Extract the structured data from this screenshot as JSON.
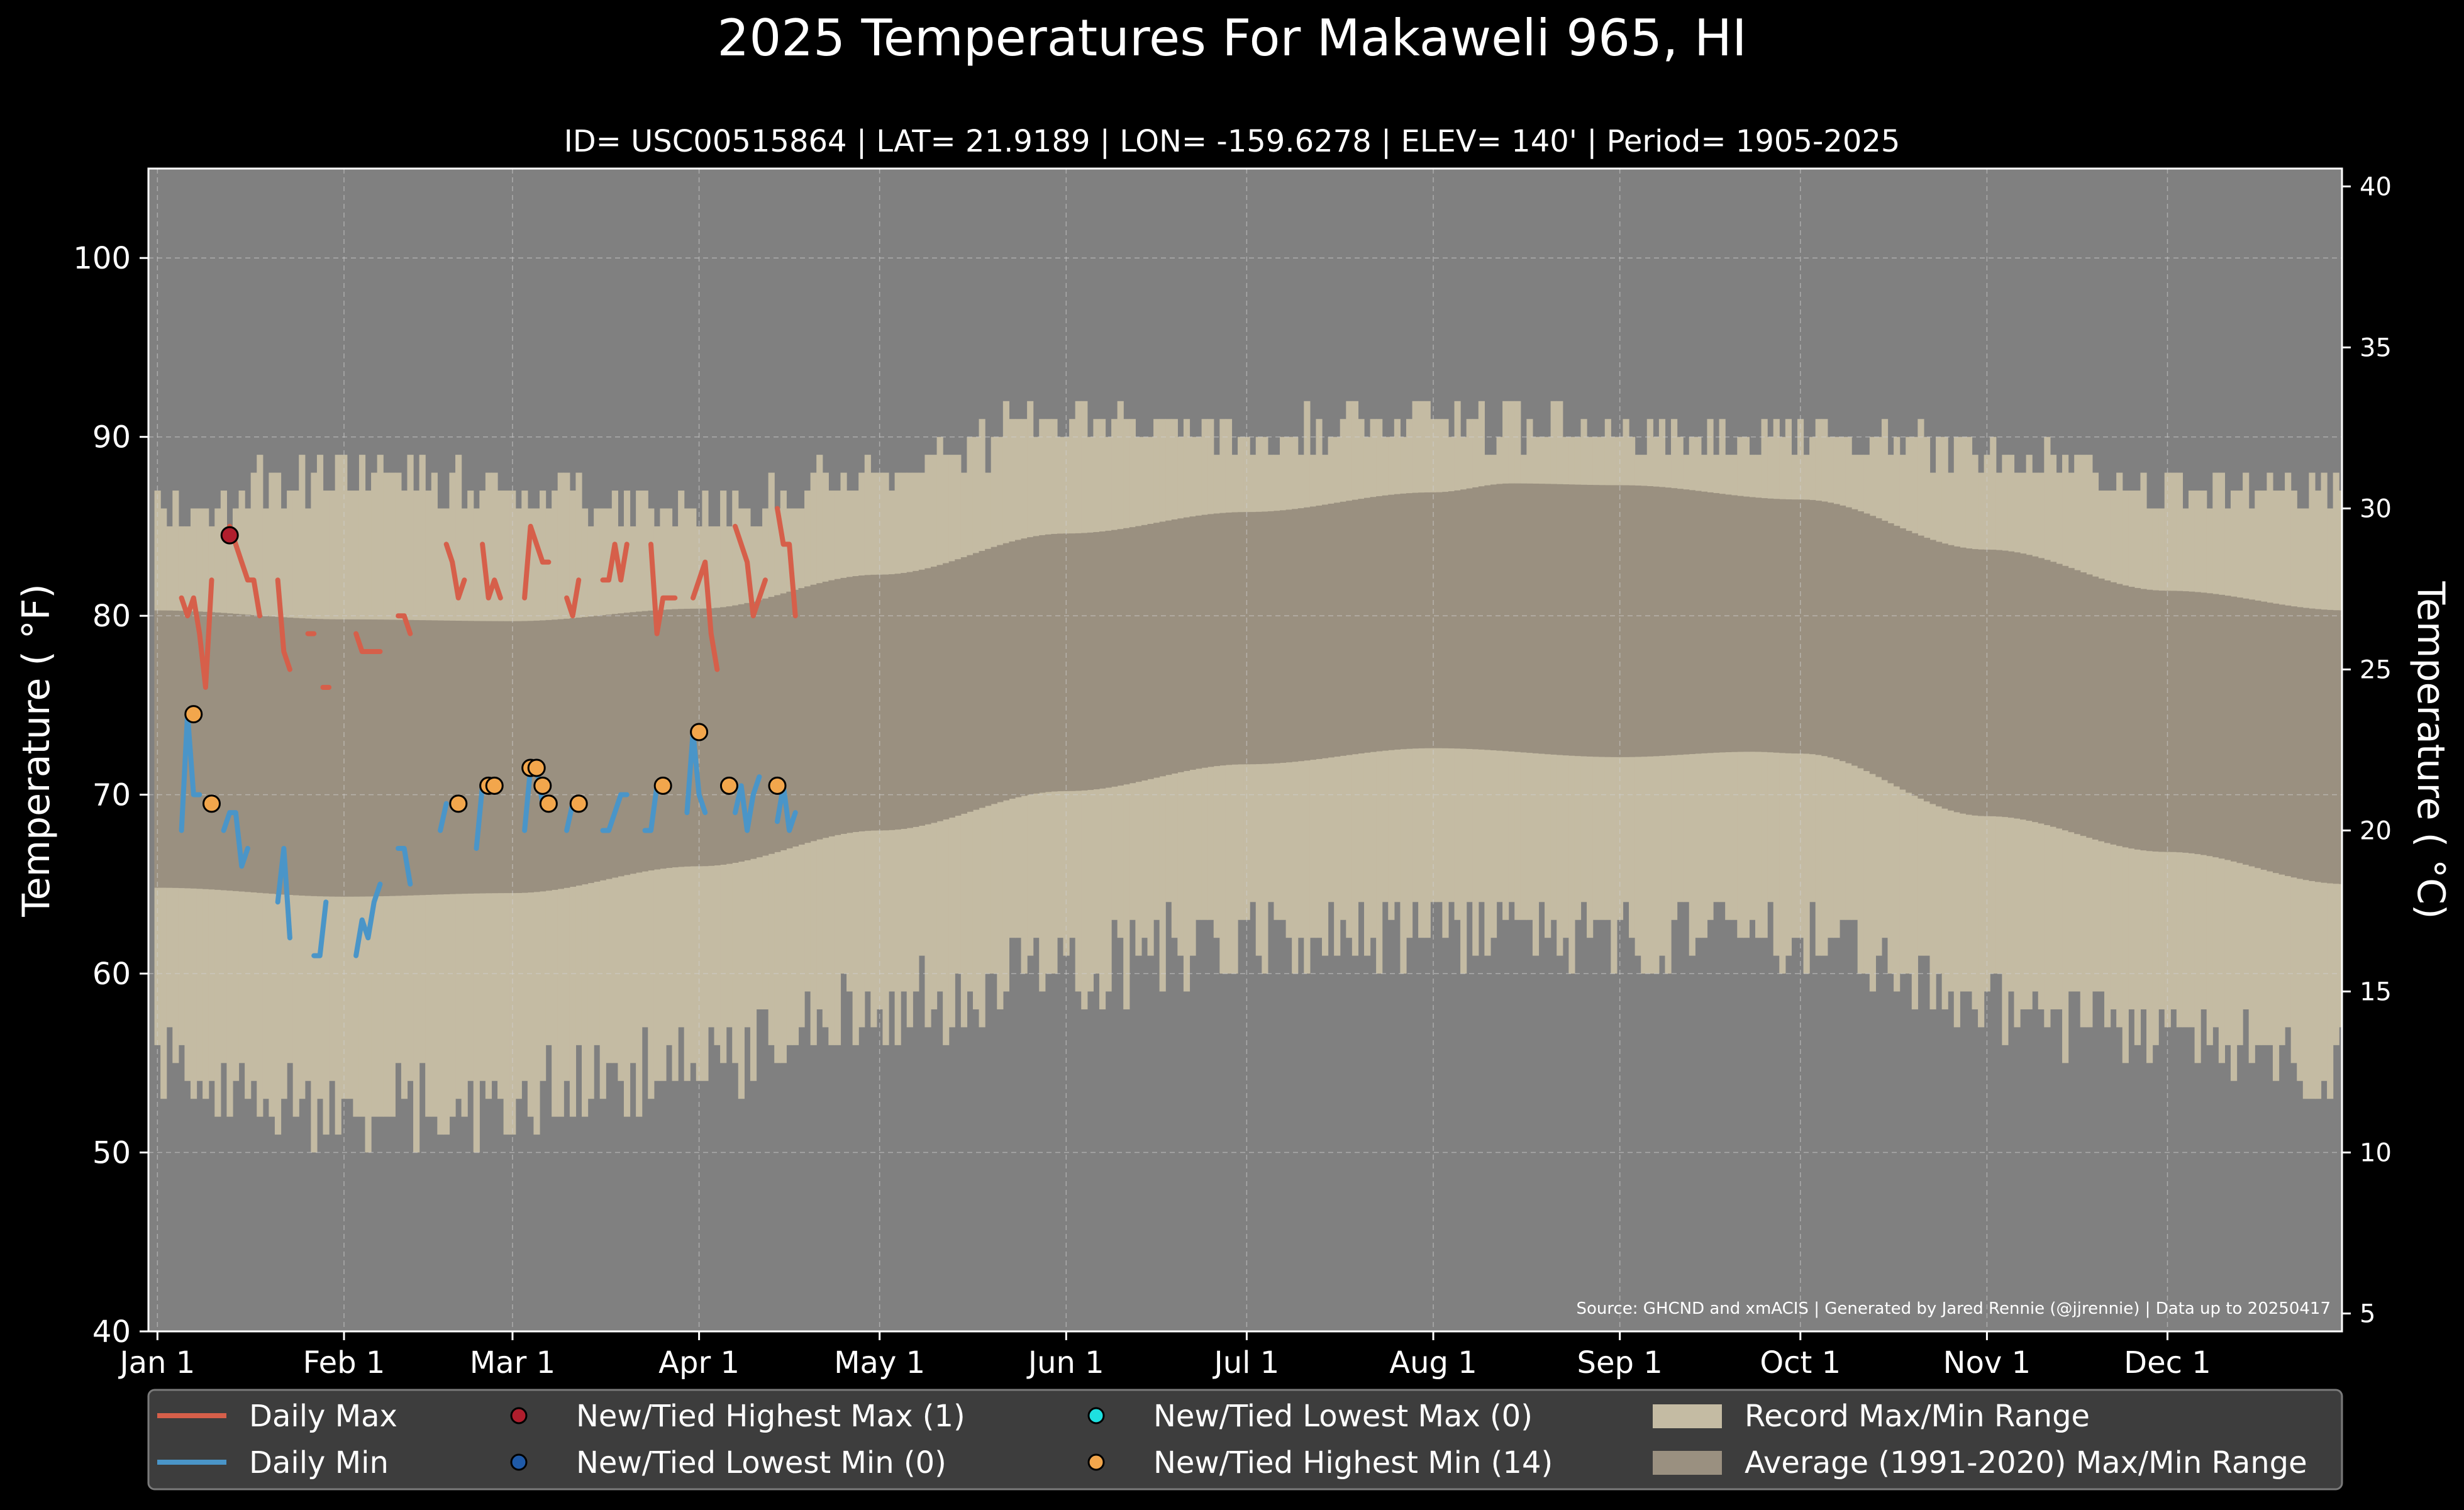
{
  "chart_data": {
    "type": "line",
    "title": "2025 Temperatures For Makaweli 965, HI",
    "subtitle": "ID= USC00515864 | LAT= 21.9189 | LON= -159.6278 | ELEV= 140' | Period= 1905-2025",
    "ylabel_left": "Temperature ( °F)",
    "ylabel_right": "Temperature ( °C)",
    "ylim": [
      40,
      105
    ],
    "y_ticks_left": [
      40,
      50,
      60,
      70,
      80,
      90,
      100
    ],
    "y_ticks_right": [
      5,
      10,
      15,
      20,
      25,
      30,
      35,
      40
    ],
    "xlim": [
      -1.5,
      363
    ],
    "month_ticks": [
      {
        "label": "Jan 1",
        "day": 0
      },
      {
        "label": "Feb 1",
        "day": 31
      },
      {
        "label": "Mar 1",
        "day": 59
      },
      {
        "label": "Apr 1",
        "day": 90
      },
      {
        "label": "May 1",
        "day": 120
      },
      {
        "label": "Jun 1",
        "day": 151
      },
      {
        "label": "Jul 1",
        "day": 181
      },
      {
        "label": "Aug 1",
        "day": 212
      },
      {
        "label": "Sep 1",
        "day": 243
      },
      {
        "label": "Oct 1",
        "day": 273
      },
      {
        "label": "Nov 1",
        "day": 304
      },
      {
        "label": "Dec 1",
        "day": 334
      }
    ],
    "grid": true,
    "source": "Source: GHCND and xmACIS | Generated by Jared Rennie (@jjrennie) | Data up to 20250417",
    "record_max_anchors": [
      [
        0,
        86
      ],
      [
        31,
        88
      ],
      [
        59,
        87
      ],
      [
        90,
        86
      ],
      [
        120,
        88
      ],
      [
        151,
        91
      ],
      [
        181,
        90
      ],
      [
        212,
        91
      ],
      [
        243,
        90
      ],
      [
        273,
        90
      ],
      [
        304,
        89
      ],
      [
        334,
        87
      ],
      [
        364,
        87
      ]
    ],
    "record_min_anchors": [
      [
        0,
        55
      ],
      [
        31,
        52
      ],
      [
        59,
        53
      ],
      [
        90,
        55
      ],
      [
        120,
        58
      ],
      [
        151,
        60
      ],
      [
        181,
        62
      ],
      [
        212,
        62
      ],
      [
        243,
        62
      ],
      [
        273,
        62
      ],
      [
        304,
        58
      ],
      [
        334,
        56
      ],
      [
        364,
        55
      ]
    ],
    "avg_max_anchors": [
      [
        0,
        80.3
      ],
      [
        31,
        79.8
      ],
      [
        59,
        79.7
      ],
      [
        90,
        80.4
      ],
      [
        120,
        82.3
      ],
      [
        151,
        84.6
      ],
      [
        181,
        85.8
      ],
      [
        212,
        86.9
      ],
      [
        225,
        87.4
      ],
      [
        243,
        87.3
      ],
      [
        273,
        86.5
      ],
      [
        304,
        83.7
      ],
      [
        334,
        81.4
      ],
      [
        364,
        80.3
      ]
    ],
    "avg_min_anchors": [
      [
        0,
        64.8
      ],
      [
        31,
        64.3
      ],
      [
        59,
        64.5
      ],
      [
        90,
        66.0
      ],
      [
        120,
        68.0
      ],
      [
        151,
        70.2
      ],
      [
        181,
        71.7
      ],
      [
        212,
        72.6
      ],
      [
        243,
        72.1
      ],
      [
        265,
        72.4
      ],
      [
        273,
        72.3
      ],
      [
        304,
        68.8
      ],
      [
        334,
        66.8
      ],
      [
        364,
        65.0
      ]
    ],
    "series": [
      {
        "name": "Daily Max",
        "color": "#d65f4a",
        "segments": [
          [
            [
              4,
              81
            ],
            [
              5,
              80
            ],
            [
              6,
              81
            ],
            [
              7,
              79
            ],
            [
              8,
              76
            ],
            [
              9,
              82
            ]
          ],
          [
            [
              12,
              85
            ],
            [
              13,
              84
            ],
            [
              14,
              83
            ],
            [
              15,
              82
            ],
            [
              16,
              82
            ],
            [
              17,
              80
            ]
          ],
          [
            [
              20,
              82
            ],
            [
              21,
              78
            ],
            [
              22,
              77
            ]
          ],
          [
            [
              25,
              79
            ],
            [
              26,
              79
            ]
          ],
          [
            [
              28,
              76
            ]
          ],
          [
            [
              33,
              79
            ],
            [
              34,
              78
            ],
            [
              35,
              78
            ],
            [
              36,
              78
            ],
            [
              37,
              78
            ]
          ],
          [
            [
              40,
              80
            ],
            [
              41,
              80
            ],
            [
              42,
              79
            ]
          ],
          [
            [
              48,
              84
            ],
            [
              49,
              83
            ],
            [
              50,
              81
            ],
            [
              51,
              82
            ]
          ],
          [
            [
              54,
              84
            ],
            [
              55,
              81
            ],
            [
              56,
              82
            ],
            [
              57,
              81
            ]
          ],
          [
            [
              61,
              81
            ],
            [
              62,
              85
            ],
            [
              63,
              84
            ],
            [
              64,
              83
            ],
            [
              65,
              83
            ]
          ],
          [
            [
              68,
              81
            ],
            [
              69,
              80
            ],
            [
              70,
              82
            ]
          ],
          [
            [
              74,
              82
            ],
            [
              75,
              82
            ],
            [
              76,
              84
            ],
            [
              77,
              82
            ],
            [
              78,
              84
            ]
          ],
          [
            [
              82,
              84
            ],
            [
              83,
              79
            ],
            [
              84,
              81
            ],
            [
              85,
              81
            ],
            [
              86,
              81
            ]
          ],
          [
            [
              89,
              81
            ],
            [
              90,
              82
            ],
            [
              91,
              83
            ],
            [
              92,
              79
            ],
            [
              93,
              77
            ]
          ],
          [
            [
              96,
              85
            ],
            [
              97,
              84
            ],
            [
              98,
              83
            ],
            [
              99,
              80
            ],
            [
              100,
              81
            ],
            [
              101,
              82
            ]
          ],
          [
            [
              103,
              86
            ],
            [
              104,
              84
            ],
            [
              105,
              84
            ],
            [
              106,
              80
            ]
          ]
        ]
      },
      {
        "name": "Daily Min",
        "color": "#4a95c8",
        "segments": [
          [
            [
              4,
              68
            ],
            [
              5,
              74.5
            ],
            [
              6,
              70
            ],
            [
              7,
              70
            ]
          ],
          [
            [
              11,
              68
            ],
            [
              12,
              69
            ],
            [
              13,
              69
            ],
            [
              14,
              66
            ],
            [
              15,
              67
            ]
          ],
          [
            [
              20,
              64
            ],
            [
              21,
              67
            ],
            [
              22,
              62
            ]
          ],
          [
            [
              26,
              61
            ],
            [
              27,
              61
            ],
            [
              28,
              64
            ]
          ],
          [
            [
              33,
              61
            ],
            [
              34,
              63
            ],
            [
              35,
              62
            ],
            [
              36,
              64
            ],
            [
              37,
              65
            ]
          ],
          [
            [
              40,
              67
            ],
            [
              41,
              67
            ],
            [
              42,
              65
            ]
          ],
          [
            [
              47,
              68
            ],
            [
              48,
              69.5
            ]
          ],
          [
            [
              53,
              67
            ],
            [
              54,
              70.5
            ],
            [
              55,
              70.5
            ]
          ],
          [
            [
              61,
              68
            ],
            [
              62,
              71.5
            ],
            [
              63,
              71.5
            ],
            [
              64,
              69.5
            ]
          ],
          [
            [
              68,
              68
            ],
            [
              69,
              69.5
            ]
          ],
          [
            [
              74,
              68
            ],
            [
              75,
              68
            ],
            [
              76,
              69
            ],
            [
              77,
              70
            ],
            [
              78,
              70
            ]
          ],
          [
            [
              81,
              68
            ],
            [
              82,
              68
            ],
            [
              83,
              70.5
            ]
          ],
          [
            [
              88,
              69
            ],
            [
              89,
              73.5
            ],
            [
              90,
              70
            ],
            [
              91,
              69
            ]
          ],
          [
            [
              96,
              69
            ],
            [
              97,
              70.5
            ],
            [
              98,
              68
            ],
            [
              99,
              70
            ],
            [
              100,
              71
            ]
          ],
          [
            [
              103,
              68.5
            ],
            [
              104,
              70.5
            ],
            [
              105,
              68
            ],
            [
              106,
              69
            ]
          ]
        ]
      }
    ],
    "record_points": {
      "highest_max": [
        {
          "day": 12,
          "value": 84.5
        }
      ],
      "lowest_min": [],
      "lowest_max": [],
      "highest_min": [
        {
          "day": 6,
          "value": 74.5
        },
        {
          "day": 9,
          "value": 69.5
        },
        {
          "day": 50,
          "value": 69.5
        },
        {
          "day": 55,
          "value": 70.5
        },
        {
          "day": 56,
          "value": 70.5
        },
        {
          "day": 62,
          "value": 71.5
        },
        {
          "day": 63,
          "value": 71.5
        },
        {
          "day": 64,
          "value": 70.5
        },
        {
          "day": 65,
          "value": 69.5
        },
        {
          "day": 70,
          "value": 69.5
        },
        {
          "day": 84,
          "value": 70.5
        },
        {
          "day": 90,
          "value": 73.5
        },
        {
          "day": 95,
          "value": 70.5
        },
        {
          "day": 103,
          "value": 70.5
        }
      ]
    },
    "legend": {
      "placement": "bottom",
      "entries": [
        {
          "label": "Daily Max",
          "kind": "line",
          "color": "#d65f4a"
        },
        {
          "label": "Daily Min",
          "kind": "line",
          "color": "#4a95c8"
        },
        {
          "label": "New/Tied Highest Max (1)",
          "kind": "dot",
          "color": "#b01e2d"
        },
        {
          "label": "New/Tied Lowest Min (0)",
          "kind": "dot",
          "color": "#1f5aa8"
        },
        {
          "label": "New/Tied Lowest Max (0)",
          "kind": "dot",
          "color": "#1ee0e0"
        },
        {
          "label": "New/Tied Highest Min (14)",
          "kind": "dot",
          "color": "#f2a64c"
        },
        {
          "label": "Record Max/Min Range",
          "kind": "patch",
          "color": "#c4bba3"
        },
        {
          "label": "Average (1991-2020) Max/Min Range",
          "kind": "patch",
          "color": "#9a9080"
        }
      ]
    },
    "colors": {
      "figure_background": "#000000",
      "plot_background": "#808080",
      "record_range": "#c4bba3",
      "average_range": "#9a9080",
      "legend_background": "#3d3d3d"
    }
  }
}
